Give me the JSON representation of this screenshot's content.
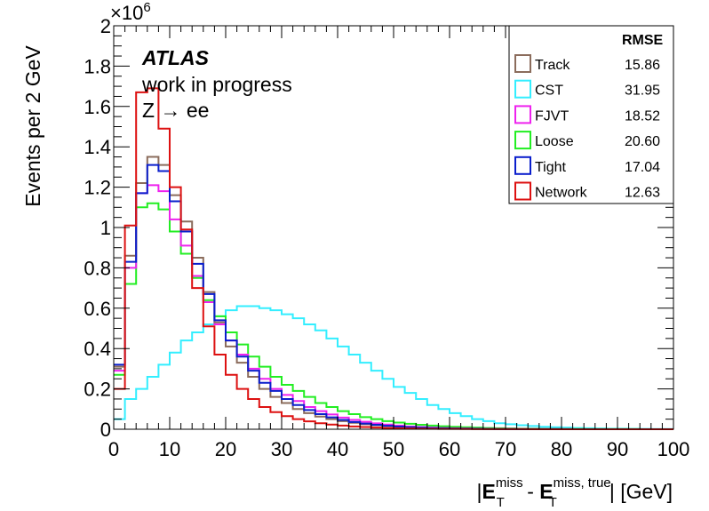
{
  "chart_data": {
    "type": "histogram",
    "title": "",
    "ylabel": "Events per 2 GeV",
    "xlabel": {
      "prefix": "|",
      "term1": "E",
      "term1_sup": "miss",
      "term1_sub": "T",
      "minus": " - ",
      "term2": "E",
      "term2_sup": "miss, true",
      "term2_sub": "T",
      "suffix": "| [GeV]"
    },
    "y_exponent_label": "×10",
    "y_exponent_power": "6",
    "y_scale": 1000000,
    "xlim": [
      0,
      100
    ],
    "ylim": [
      0,
      2
    ],
    "x_ticks": [
      "0",
      "10",
      "20",
      "30",
      "40",
      "50",
      "60",
      "70",
      "80",
      "90",
      "100"
    ],
    "y_ticks": [
      "0",
      "0.2",
      "0.4",
      "0.6",
      "0.8",
      "1",
      "1.2",
      "1.4",
      "1.6",
      "1.8",
      "2"
    ],
    "grid": false,
    "legend_position": "top-right",
    "legend_header": "RMSE",
    "annotations": {
      "atlas": "ATLAS",
      "status": "work in progress",
      "process": "Z → ee"
    },
    "bin_width": 2,
    "series": [
      {
        "name": "CST",
        "rmse": "31.95",
        "color": "#33eeff",
        "values": [
          0.05,
          0.15,
          0.2,
          0.26,
          0.32,
          0.38,
          0.44,
          0.48,
          0.52,
          0.56,
          0.59,
          0.61,
          0.61,
          0.6,
          0.59,
          0.57,
          0.55,
          0.52,
          0.49,
          0.45,
          0.41,
          0.37,
          0.33,
          0.29,
          0.25,
          0.21,
          0.18,
          0.15,
          0.12,
          0.1,
          0.08,
          0.065,
          0.05,
          0.04,
          0.03,
          0.025,
          0.02,
          0.016,
          0.012,
          0.01,
          0.008,
          0.006,
          0.005,
          0.004,
          0.003,
          0.0025,
          0.002,
          0.0015,
          0.001,
          0.001
        ]
      },
      {
        "name": "Loose",
        "rmse": "20.60",
        "color": "#22ee22",
        "values": [
          0.27,
          0.72,
          1.1,
          1.12,
          1.09,
          0.98,
          0.87,
          0.75,
          0.64,
          0.56,
          0.48,
          0.42,
          0.36,
          0.31,
          0.26,
          0.22,
          0.19,
          0.16,
          0.13,
          0.11,
          0.09,
          0.075,
          0.06,
          0.05,
          0.04,
          0.033,
          0.027,
          0.022,
          0.018,
          0.015,
          0.012,
          0.01,
          0.008,
          0.006,
          0.005,
          0.004,
          0.003,
          0.0025,
          0.002,
          0.0015,
          0.001,
          0.001,
          0.0008,
          0.0006,
          0.0005,
          0.0004,
          0.0003,
          0.0002,
          0.0002,
          0.0001
        ]
      },
      {
        "name": "FJVT",
        "rmse": "18.52",
        "color": "#ee22ee",
        "values": [
          0.29,
          0.8,
          1.17,
          1.21,
          1.18,
          1.04,
          0.91,
          0.76,
          0.63,
          0.52,
          0.44,
          0.37,
          0.3,
          0.25,
          0.2,
          0.17,
          0.14,
          0.11,
          0.09,
          0.073,
          0.058,
          0.046,
          0.037,
          0.029,
          0.023,
          0.018,
          0.014,
          0.011,
          0.008,
          0.006,
          0.005,
          0.004,
          0.003,
          0.002,
          0.0015,
          0.001,
          0.0008,
          0.0006,
          0.0005,
          0.0004,
          0.0003,
          0.0002,
          0.0002,
          0.0001,
          0.0001,
          0.0001,
          0.0001,
          0.0001,
          0.0001,
          0.0001
        ]
      },
      {
        "name": "Track",
        "rmse": "15.86",
        "color": "#8b6c5c",
        "values": [
          0.31,
          0.86,
          1.22,
          1.35,
          1.31,
          1.16,
          1.03,
          0.85,
          0.68,
          0.53,
          0.41,
          0.33,
          0.26,
          0.2,
          0.16,
          0.13,
          0.1,
          0.08,
          0.063,
          0.05,
          0.04,
          0.032,
          0.025,
          0.02,
          0.016,
          0.013,
          0.01,
          0.008,
          0.006,
          0.005,
          0.004,
          0.003,
          0.0024,
          0.0018,
          0.0014,
          0.001,
          0.0008,
          0.0006,
          0.0005,
          0.0004,
          0.0003,
          0.0002,
          0.0002,
          0.0001,
          0.0001,
          0.0001,
          0.0001,
          0.0001,
          0.0001,
          0.0001
        ]
      },
      {
        "name": "Tight",
        "rmse": "17.04",
        "color": "#0a1ecc",
        "values": [
          0.32,
          0.83,
          1.17,
          1.31,
          1.28,
          1.13,
          0.98,
          0.82,
          0.67,
          0.54,
          0.44,
          0.36,
          0.29,
          0.23,
          0.19,
          0.15,
          0.12,
          0.095,
          0.075,
          0.059,
          0.046,
          0.036,
          0.028,
          0.022,
          0.017,
          0.013,
          0.01,
          0.008,
          0.006,
          0.005,
          0.004,
          0.003,
          0.0023,
          0.0017,
          0.0013,
          0.001,
          0.0008,
          0.0006,
          0.0004,
          0.0003,
          0.0002,
          0.0002,
          0.0001,
          0.0001,
          0.0001,
          0.0001,
          0.0001,
          0.0001,
          0.0001,
          0.0001
        ]
      },
      {
        "name": "Network",
        "rmse": "12.63",
        "color": "#dd1111",
        "values": [
          0.2,
          1.01,
          1.67,
          1.69,
          1.49,
          1.2,
          0.99,
          0.7,
          0.51,
          0.37,
          0.27,
          0.2,
          0.15,
          0.11,
          0.085,
          0.065,
          0.05,
          0.039,
          0.03,
          0.023,
          0.018,
          0.014,
          0.011,
          0.008,
          0.006,
          0.005,
          0.004,
          0.003,
          0.0024,
          0.0018,
          0.0014,
          0.001,
          0.0008,
          0.0006,
          0.0005,
          0.0004,
          0.0003,
          0.0002,
          0.0002,
          0.0001,
          0.0001,
          0.0001,
          0.0001,
          0.0001,
          0.0001,
          0.0001,
          0.0001,
          0.0001,
          0.0001,
          0.0001
        ]
      }
    ],
    "legend_order": [
      "Track",
      "CST",
      "FJVT",
      "Loose",
      "Tight",
      "Network"
    ]
  }
}
